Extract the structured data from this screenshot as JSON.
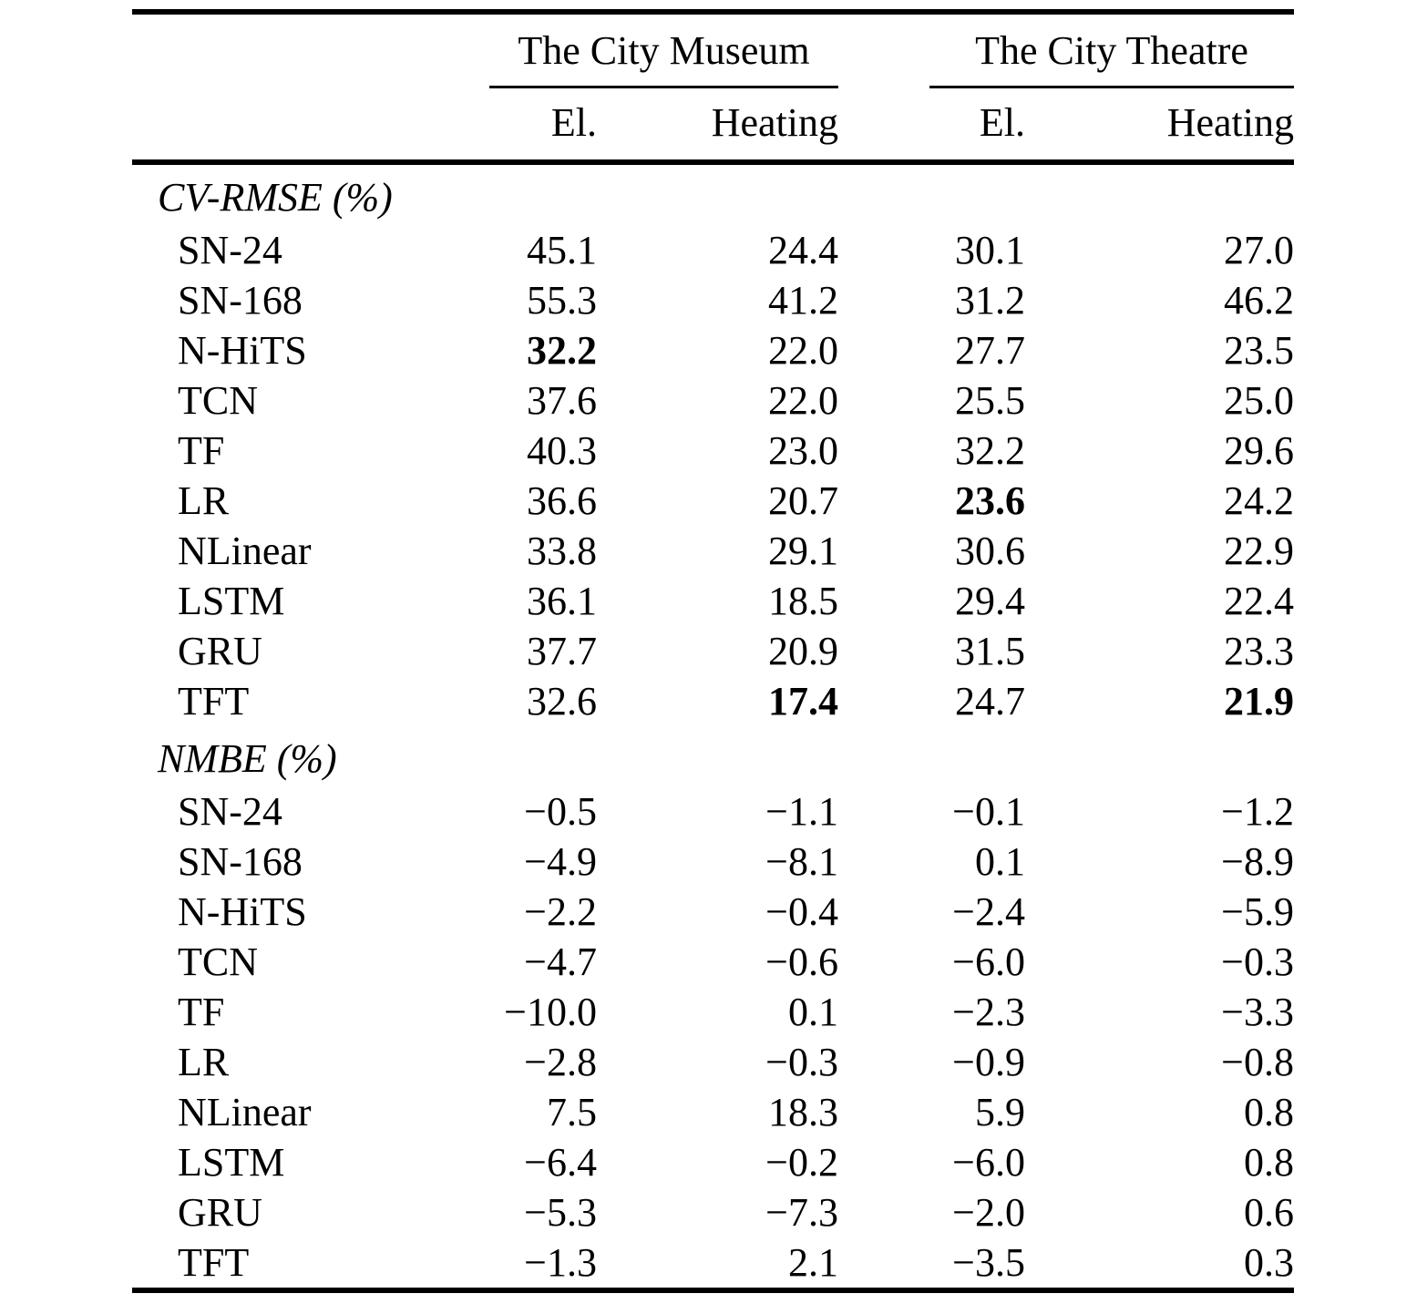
{
  "table": {
    "column_groups": [
      {
        "label": "The City Museum",
        "sub_columns": [
          "El.",
          "Heating"
        ]
      },
      {
        "label": "The City Theatre",
        "sub_columns": [
          "El.",
          "Heating"
        ]
      }
    ],
    "sections": [
      {
        "label": "CV-RMSE (%)",
        "rows": [
          {
            "label": "SN-24",
            "values": [
              "45.1",
              "24.4",
              "30.1",
              "27.0"
            ]
          },
          {
            "label": "SN-168",
            "values": [
              "55.3",
              "41.2",
              "31.2",
              "46.2"
            ]
          },
          {
            "label": "N-HiTS",
            "values": [
              "32.2",
              "22.0",
              "27.7",
              "23.5"
            ],
            "bold": [
              true,
              false,
              false,
              false
            ]
          },
          {
            "label": "TCN",
            "values": [
              "37.6",
              "22.0",
              "25.5",
              "25.0"
            ]
          },
          {
            "label": "TF",
            "values": [
              "40.3",
              "23.0",
              "32.2",
              "29.6"
            ]
          },
          {
            "label": "LR",
            "values": [
              "36.6",
              "20.7",
              "23.6",
              "24.2"
            ],
            "bold": [
              false,
              false,
              true,
              false
            ]
          },
          {
            "label": "NLinear",
            "values": [
              "33.8",
              "29.1",
              "30.6",
              "22.9"
            ]
          },
          {
            "label": "LSTM",
            "values": [
              "36.1",
              "18.5",
              "29.4",
              "22.4"
            ]
          },
          {
            "label": "GRU",
            "values": [
              "37.7",
              "20.9",
              "31.5",
              "23.3"
            ]
          },
          {
            "label": "TFT",
            "values": [
              "32.6",
              "17.4",
              "24.7",
              "21.9"
            ],
            "bold": [
              false,
              true,
              false,
              true
            ]
          }
        ]
      },
      {
        "label": "NMBE (%)",
        "rows": [
          {
            "label": "SN-24",
            "values": [
              "−0.5",
              "−1.1",
              "−0.1",
              "−1.2"
            ]
          },
          {
            "label": "SN-168",
            "values": [
              "−4.9",
              "−8.1",
              "0.1",
              "−8.9"
            ]
          },
          {
            "label": "N-HiTS",
            "values": [
              "−2.2",
              "−0.4",
              "−2.4",
              "−5.9"
            ]
          },
          {
            "label": "TCN",
            "values": [
              "−4.7",
              "−0.6",
              "−6.0",
              "−0.3"
            ]
          },
          {
            "label": "TF",
            "values": [
              "−10.0",
              "0.1",
              "−2.3",
              "−3.3"
            ]
          },
          {
            "label": "LR",
            "values": [
              "−2.8",
              "−0.3",
              "−0.9",
              "−0.8"
            ]
          },
          {
            "label": "NLinear",
            "values": [
              "7.5",
              "18.3",
              "5.9",
              "0.8"
            ]
          },
          {
            "label": "LSTM",
            "values": [
              "−6.4",
              "−0.2",
              "−6.0",
              "0.8"
            ]
          },
          {
            "label": "GRU",
            "values": [
              "−5.3",
              "−7.3",
              "−2.0",
              "0.6"
            ]
          },
          {
            "label": "TFT",
            "values": [
              "−1.3",
              "2.1",
              "−3.5",
              "0.3"
            ]
          }
        ]
      }
    ]
  }
}
